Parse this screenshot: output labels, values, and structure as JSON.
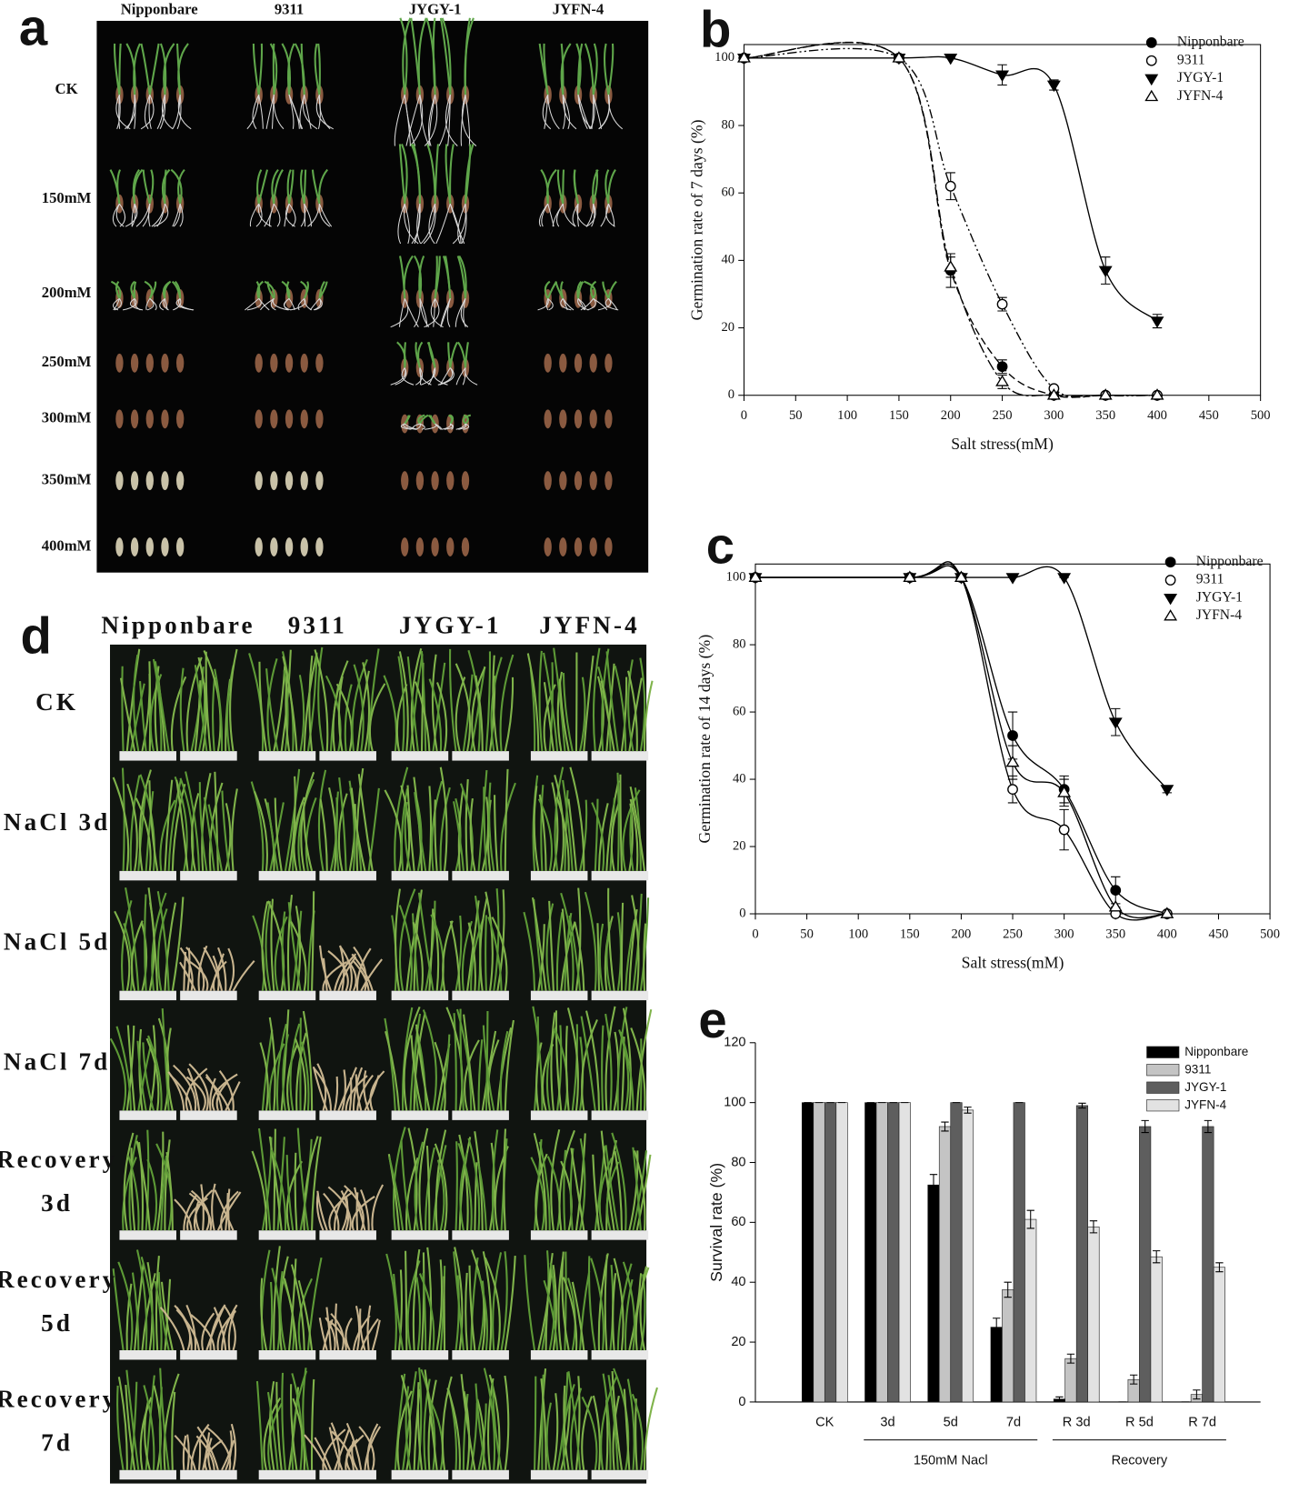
{
  "panels": {
    "a": {
      "label": "a",
      "columns": [
        "Nipponbare",
        "9311",
        "JYGY-1",
        "JYFN-4"
      ],
      "rows": [
        "CK",
        "150mM",
        "200mM",
        "250mM",
        "300mM",
        "350mM",
        "400mM"
      ]
    },
    "d": {
      "label": "d",
      "columns": [
        "Nipponbare",
        "9311",
        "JYGY-1",
        "JYFN-4"
      ],
      "rows": [
        [
          "CK"
        ],
        [
          "NaCl 3d"
        ],
        [
          "NaCl 5d"
        ],
        [
          "NaCl 7d"
        ],
        [
          "Recovery",
          "3d"
        ],
        [
          "Recovery",
          "5d"
        ],
        [
          "Recovery",
          "7d"
        ]
      ]
    }
  },
  "chart_data": [
    {
      "type": "line",
      "panel_label": "b",
      "ylabel": "Germination rate of 7 days (%)",
      "xlabel": "Salt stress(mM)",
      "x": [
        0,
        150,
        200,
        250,
        300,
        350,
        400
      ],
      "xlim": [
        0,
        500
      ],
      "xticks": [
        0,
        50,
        100,
        150,
        200,
        250,
        300,
        350,
        400,
        450,
        500
      ],
      "ylim": [
        0,
        104
      ],
      "yticks": [
        0,
        20,
        40,
        60,
        80,
        100
      ],
      "legend": "upper right",
      "series": [
        {
          "name": "Nipponbare",
          "color": "#000000",
          "marker": "circle",
          "dash": "8 4",
          "values": [
            100,
            100,
            37,
            8.5,
            0,
            0,
            0
          ],
          "errors": [
            0,
            0,
            5,
            2,
            0,
            0,
            0
          ]
        },
        {
          "name": "9311",
          "color": "#000000",
          "marker": "circle-open",
          "dash": "10 3 2 3 2 3",
          "values": [
            100,
            100,
            62,
            27,
            2,
            0,
            0
          ],
          "errors": [
            0,
            0,
            4,
            2,
            0,
            0,
            0
          ]
        },
        {
          "name": "JYGY-1",
          "color": "#000000",
          "marker": "triangle-down",
          "dash": "none",
          "values": [
            100,
            100,
            100,
            95,
            92,
            37,
            22
          ],
          "errors": [
            0,
            0,
            0,
            3,
            1.5,
            4,
            2
          ]
        },
        {
          "name": "JYFN-4",
          "color": "#000000",
          "marker": "triangle-up-open",
          "dash": "12 3 3 3",
          "values": [
            100,
            100,
            38,
            4,
            0,
            0,
            0
          ],
          "errors": [
            0,
            0,
            3,
            2,
            0,
            0,
            0
          ]
        }
      ]
    },
    {
      "type": "line",
      "panel_label": "c",
      "ylabel": "Germination rate of 14 days (%)",
      "xlabel": "Salt stress(mM)",
      "x": [
        0,
        150,
        200,
        250,
        300,
        350,
        400
      ],
      "xlim": [
        0,
        500
      ],
      "xticks": [
        0,
        50,
        100,
        150,
        200,
        250,
        300,
        350,
        400,
        450,
        500
      ],
      "ylim": [
        0,
        104
      ],
      "yticks": [
        0,
        20,
        40,
        60,
        80,
        100
      ],
      "legend": "upper right",
      "series": [
        {
          "name": "Nipponbare",
          "color": "#000000",
          "marker": "circle",
          "dash": "none",
          "values": [
            100,
            100,
            100,
            53,
            37,
            7,
            0
          ],
          "errors": [
            0,
            0,
            0,
            7,
            4,
            4,
            0
          ]
        },
        {
          "name": "9311",
          "color": "#000000",
          "marker": "circle-open",
          "dash": "none",
          "values": [
            100,
            100,
            100,
            37,
            25,
            0,
            0
          ],
          "errors": [
            0,
            0,
            0,
            4,
            6,
            0,
            0
          ]
        },
        {
          "name": "JYGY-1",
          "color": "#000000",
          "marker": "triangle-down",
          "dash": "none",
          "values": [
            100,
            100,
            100,
            100,
            100,
            57,
            37
          ],
          "errors": [
            0,
            0,
            0,
            0,
            0,
            4,
            1
          ]
        },
        {
          "name": "JYFN-4",
          "color": "#000000",
          "marker": "triangle-up-open",
          "dash": "none",
          "values": [
            100,
            100,
            100,
            45,
            36,
            2,
            0
          ],
          "errors": [
            0,
            0,
            0,
            5,
            4,
            0,
            0
          ]
        }
      ]
    },
    {
      "type": "bar",
      "panel_label": "e",
      "ylabel": "Survival rate (%)",
      "categories": [
        "CK",
        "3d",
        "5d",
        "7d",
        "R 3d",
        "R 5d",
        "R 7d"
      ],
      "group_labels": [
        "150mM Nacl",
        "Recovery"
      ],
      "ylim": [
        0,
        120
      ],
      "yticks": [
        0,
        20,
        40,
        60,
        80,
        100,
        120
      ],
      "legend": "upper right",
      "series": [
        {
          "name": "Nipponbare",
          "color": "#000000",
          "values": [
            100,
            100,
            72.5,
            25,
            1,
            0,
            0
          ],
          "errors": [
            0,
            0,
            3.5,
            3,
            0.7,
            0,
            0
          ]
        },
        {
          "name": "9311",
          "color": "#c4c4c4",
          "values": [
            100,
            100,
            92,
            37.5,
            14.5,
            7.5,
            2.5
          ],
          "errors": [
            0,
            0,
            1.5,
            2.5,
            1.5,
            1.5,
            1.5
          ]
        },
        {
          "name": "JYGY-1",
          "color": "#5e5e5e",
          "values": [
            100,
            100,
            100,
            100,
            99,
            92,
            92
          ],
          "errors": [
            0,
            0,
            0,
            0,
            0.8,
            2,
            2
          ]
        },
        {
          "name": "JYFN-4",
          "color": "#e2e2e2",
          "values": [
            100,
            100,
            97.5,
            61,
            58.5,
            48.5,
            45
          ],
          "errors": [
            0,
            0,
            1,
            3,
            2,
            2,
            1.5
          ]
        }
      ]
    }
  ]
}
